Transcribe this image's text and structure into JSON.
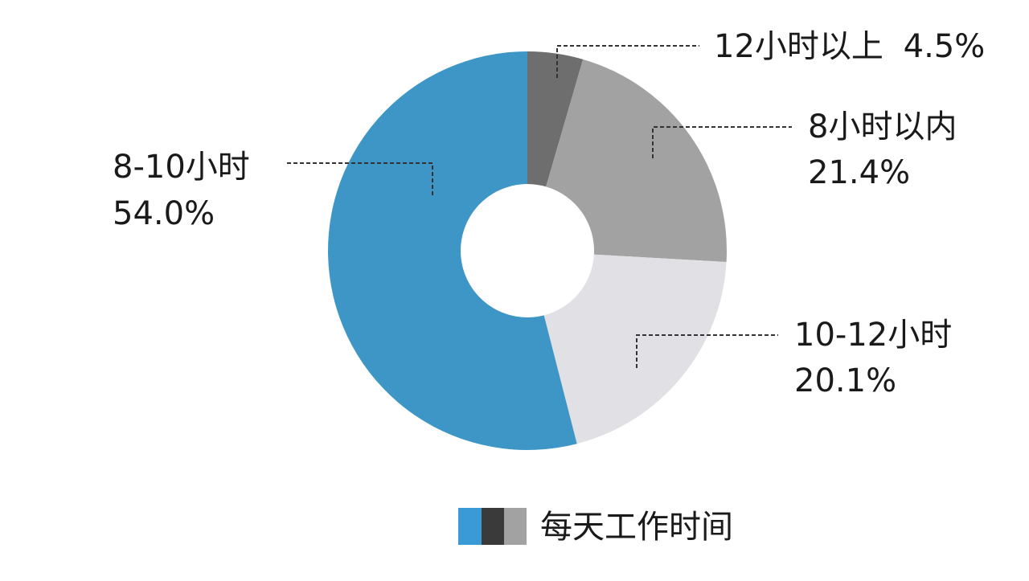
{
  "chart_data": {
    "type": "pie",
    "donut": true,
    "title": "",
    "slices": [
      {
        "name": "12小时以上",
        "value": 4.5,
        "percent_label": "4.5%",
        "color": "#6e6e6e"
      },
      {
        "name": "8小时以内",
        "value": 21.4,
        "percent_label": "21.4%",
        "color": "#a2a2a2"
      },
      {
        "name": "10-12小时",
        "value": 20.1,
        "percent_label": "20.1%",
        "color": "#e1e0e4"
      },
      {
        "name": "8-10小时",
        "value": 54.0,
        "percent_label": "54.0%",
        "color": "#3d96c6"
      }
    ],
    "start_angle_deg": 0,
    "direction": "clockwise",
    "legend": {
      "label": "每天工作时间",
      "placement": "bottom-center",
      "swatch_colors": [
        "#3a9ad6",
        "#3a3a3a",
        "#a2a2a2"
      ]
    }
  }
}
